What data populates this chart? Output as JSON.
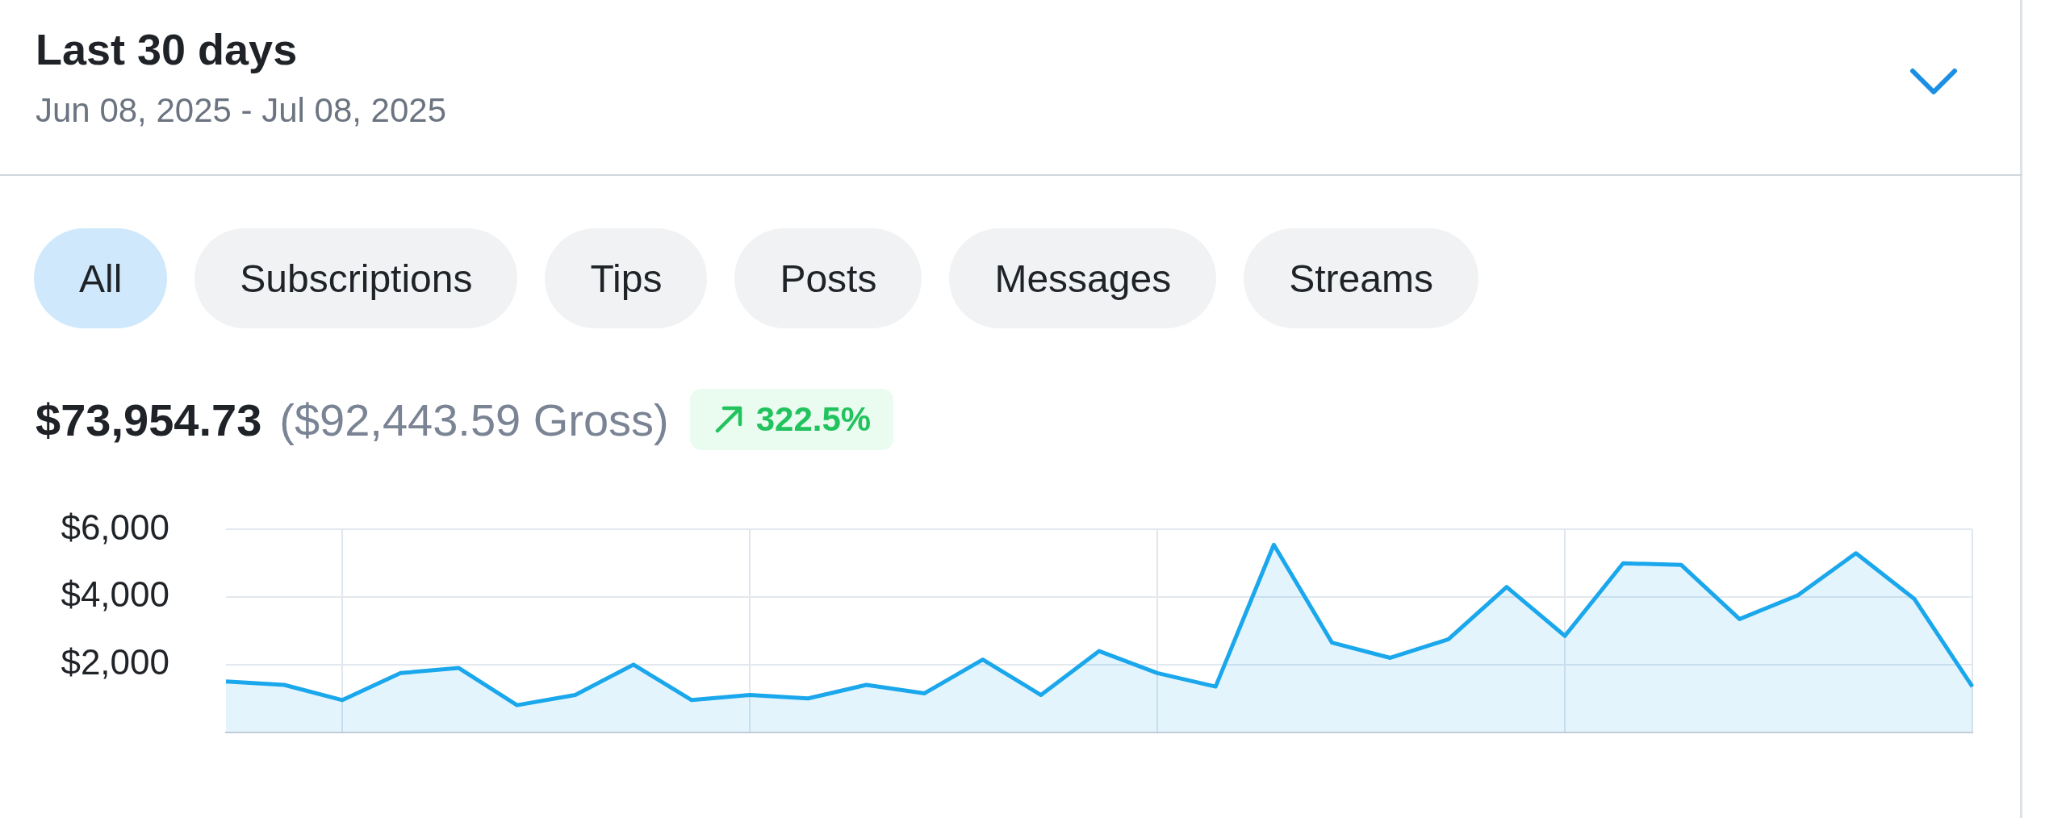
{
  "chart_data": {
    "type": "area",
    "title": "Last 30 days",
    "subtitle": "Jun 08, 2025 - Jul 08, 2025",
    "annotations": [
      "All",
      "Subscriptions",
      "Tips",
      "Posts",
      "Messages",
      "Streams",
      "$73,954.73",
      "($92,443.59 Gross)",
      "322.5%"
    ],
    "categories": [
      null,
      null,
      null,
      null,
      null,
      null,
      null,
      null,
      null,
      null,
      null,
      null,
      null,
      null,
      null,
      null,
      null,
      null,
      null,
      null,
      null,
      null,
      null,
      null,
      null,
      null,
      null,
      null,
      null,
      null,
      null
    ],
    "series": [
      {
        "color": "#1aa7ec",
        "values": [
          1500,
          1400,
          950,
          1750,
          1900,
          800,
          1100,
          2000,
          950,
          1100,
          1000,
          1400,
          1150,
          2150,
          1100,
          2400,
          1750,
          1350,
          5550,
          2650,
          2200,
          2750,
          4300,
          2850,
          5000,
          4950,
          3350,
          4050,
          5300,
          3950,
          1350
        ]
      }
    ],
    "ylim": [
      0,
      6000
    ],
    "yticks": [
      {
        "value": 0,
        "label": null
      },
      {
        "value": 2000,
        "label": "$2,000"
      },
      {
        "value": 4000,
        "label": "$4,000"
      },
      {
        "value": 6000,
        "label": "$6,000"
      }
    ],
    "grid": true,
    "tick_labels": "y",
    "legend": false,
    "marker": "none"
  }
}
